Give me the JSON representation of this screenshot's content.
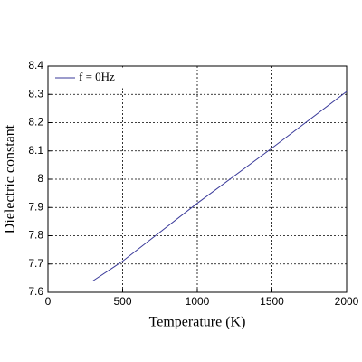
{
  "chart_data": {
    "type": "line",
    "xlabel": "Temperature (K)",
    "ylabel": "Dielectric constant",
    "x": [
      300,
      500,
      1000,
      1500,
      2000
    ],
    "series": [
      {
        "name": "f = 0Hz",
        "color": "#3a3a9a",
        "values": [
          7.64,
          7.71,
          7.915,
          8.11,
          8.31
        ]
      }
    ],
    "xlim": [
      0,
      2000
    ],
    "xticks": [
      0,
      500,
      1000,
      1500,
      2000
    ],
    "ylim": [
      7.6,
      8.4
    ],
    "yticks": [
      7.6,
      7.7,
      7.8,
      7.9,
      8,
      8.1,
      8.2,
      8.3,
      8.4
    ],
    "grid": true,
    "legend": "upper left"
  }
}
